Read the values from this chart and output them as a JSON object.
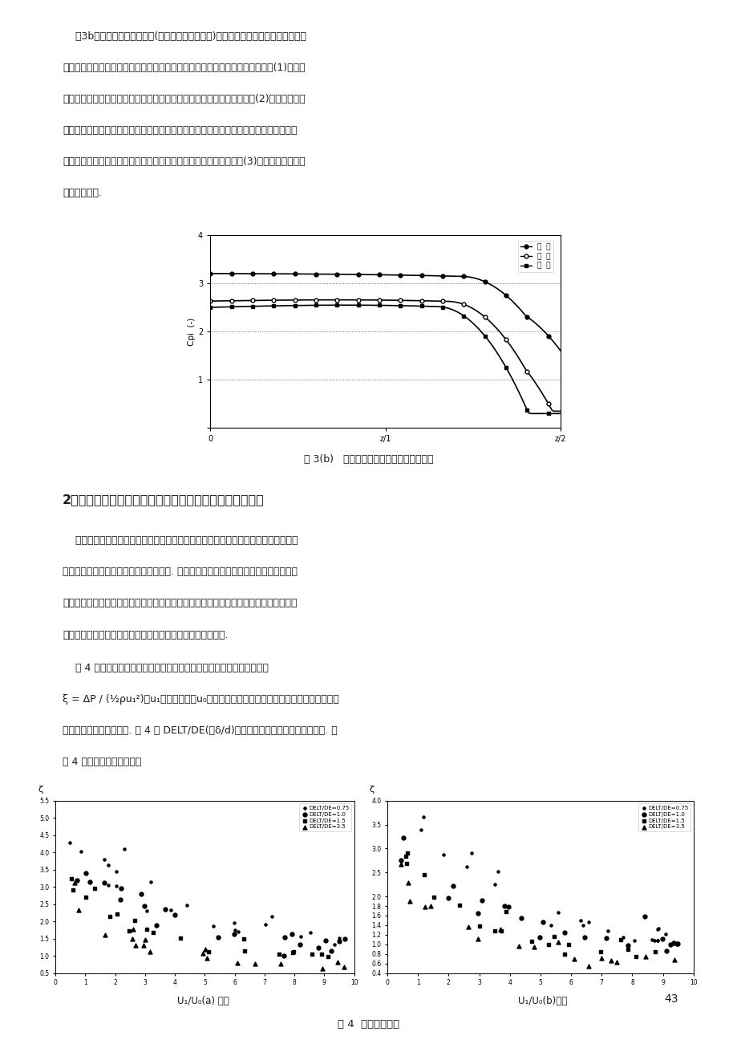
{
  "page_background": "#ffffff",
  "fig_width": 9.2,
  "fig_height": 13.01,
  "text_color": "#1a1a1a",
  "para1_lines": [
    "    图3b中，合流流体在出口处(相当于分流的进口处)流动的分离及冲击影响远较分流时",
    "为小，其大部分分离区域在出口接管内，而不在环形流道内。压力分布特点是：(1)在环形",
    "流道的中心地带有一个压力升值，这是由于二侧流体在中心汇合造成的。(2)压力最高点在",
    "流道内距出口处最远的远端点；而且压力幅値也比较大，这是因为远端点处流道内流速较",
    "小、并且还要以高的压力推动不断进入流道的穿孔流体到达出口处。(3)内外侧压力差明显",
    "大于分流流动."
  ],
  "fig3b_caption": "图 3(b)   径向出口合流流动压力系数分布图",
  "section_title": "2、分、合流条件下穿孔阻力系数以及排管阻力系数的研究",
  "para2_lines": [
    "    在列管式固定床反应器管间流动的研究工作中，几种型式的孔在分流、合流条件下穿",
    "孔阻力系数的测定和研究占有重要的位置. 在研究、了解了环形流道及其它管间流道内的",
    "压力分布后，必须以具有不同穿孔阻力系数的孔与之匹配，以求获得均匀的流动。因此，",
    "花了大量的时间进行这项工作，同时也对排管阻力进行了测定."
  ],
  "para3_lines": [
    "    图 4 给出了分流、合流条件下穿孔阻力系数的典型数据，图中阻力系数",
    "ξ = ΔP / (½ρu₁²)，u₁为穿孔流速；u₀为主流道平均流速，对分流指分流前的流速，对合",
    "流指合流后的主流道流速. 图 4 中 DELT/DE(或δ/d)为穿孔壁厚与孔口水力直径的比値. 从",
    "图 4 中可以看出如下特点："
  ],
  "fig4_caption": "图 4  穿孔阻力系数",
  "fig4a_xlabel": "U₁/U₀(a) 分流",
  "fig4b_xlabel": "U₁/U₀(b)合流",
  "page_number": "43",
  "legend_labels": [
    "DELT/DE=0.75",
    "DELT/DE=1.0",
    "DELT/DE=1.5",
    "DELT/DE=3.5"
  ]
}
